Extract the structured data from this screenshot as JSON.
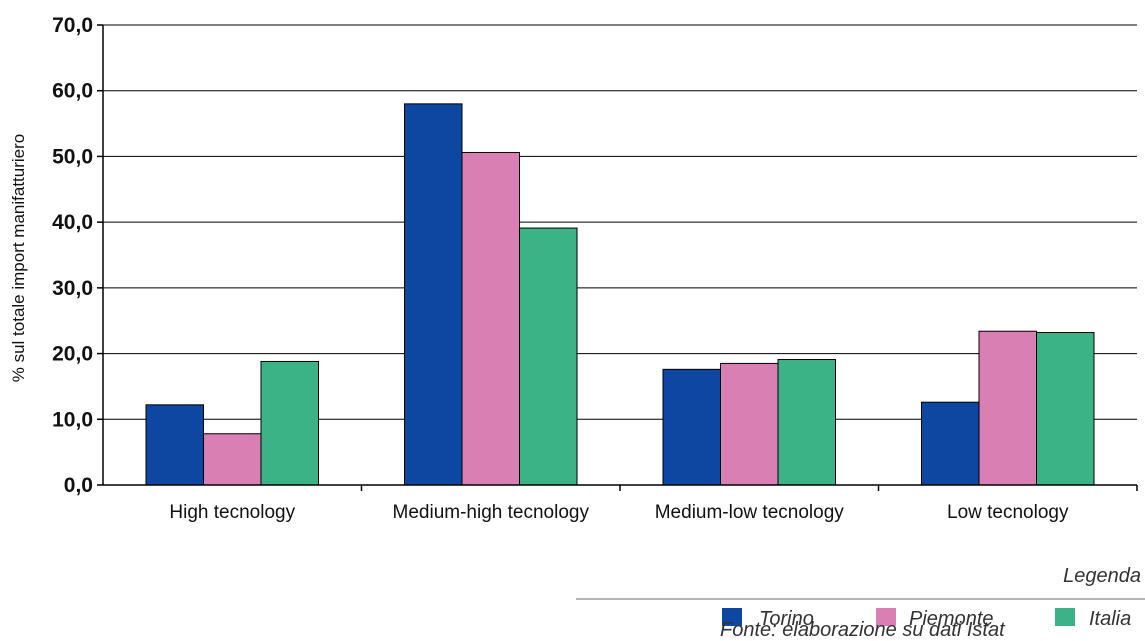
{
  "chart_data": {
    "type": "bar",
    "categories": [
      "High tecnology",
      "Medium-high tecnology",
      "Medium-low tecnology",
      "Low tecnology"
    ],
    "series": [
      {
        "name": "Torino",
        "values": [
          12.2,
          58.0,
          17.6,
          12.6
        ],
        "color": "#0d47a1"
      },
      {
        "name": "Piemonte",
        "values": [
          7.8,
          50.6,
          18.5,
          23.4
        ],
        "color": "#d97fb4"
      },
      {
        "name": "Italia",
        "values": [
          18.8,
          39.1,
          19.1,
          23.2
        ],
        "color": "#3cb386"
      }
    ],
    "ylabel": "% sul totale import manifatturiero",
    "ylim": [
      0,
      70
    ],
    "yticks": [
      "0,0",
      "10,0",
      "20,0",
      "30,0",
      "40,0",
      "50,0",
      "60,0",
      "70,0"
    ],
    "grid": true,
    "legend_title": "Legenda",
    "legend_position": "bottom-right",
    "source": "Fonte: elaborazione su dati Istat"
  }
}
